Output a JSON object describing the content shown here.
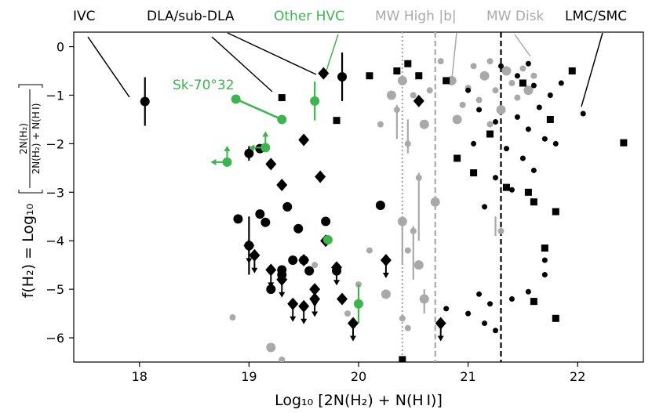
{
  "chart_data": {
    "type": "scatter",
    "title": "",
    "xlabel": "Log₁₀ [2N(H₂) + N(H I)]",
    "ylabel": "f(H₂) = Log₁₀ [2N(H₂) / (2N(H₂) + N(H I))]",
    "ylabel_parts": {
      "lhs": "f(H₂) = Log₁₀",
      "num": "2N(H₂)",
      "den": "2N(H₂) + N(H I)"
    },
    "xlim": [
      17.4,
      22.6
    ],
    "ylim": [
      -6.5,
      0.3
    ],
    "xticks": [
      18,
      19,
      20,
      21,
      22
    ],
    "yticks": [
      0,
      -1,
      -2,
      -3,
      -4,
      -5,
      -6
    ],
    "grid": false,
    "colors": {
      "black": "#000000",
      "gray": "#a9a9a9",
      "green": "#3cb450"
    },
    "vlines": [
      {
        "x": 20.4,
        "style": "dotted",
        "color": "#a9a9a9"
      },
      {
        "x": 20.7,
        "style": "dashed",
        "color": "#a9a9a9"
      },
      {
        "x": 21.3,
        "style": "dashed",
        "color": "#000000"
      }
    ],
    "category_labels": [
      {
        "text": "IVC",
        "color": "#000000"
      },
      {
        "text": "DLA/sub-DLA",
        "color": "#000000"
      },
      {
        "text": "Other HVC",
        "color": "#3cb450"
      },
      {
        "text": "MW High |b|",
        "color": "#a9a9a9"
      },
      {
        "text": "MW Disk",
        "color": "#a9a9a9"
      },
      {
        "text": "LMC/SMC",
        "color": "#000000"
      }
    ],
    "annotation": {
      "text": "Sk-70°32",
      "color": "#3cb450"
    },
    "series": [
      {
        "name": "IVC",
        "marker": "circle",
        "color": "#000000",
        "points": [
          {
            "x": 18.05,
            "y": -1.13,
            "err": 0.5
          },
          {
            "x": 19.0,
            "y": -2.2,
            "err": 0.15
          },
          {
            "x": 19.1,
            "y": -2.1
          },
          {
            "x": 19.35,
            "y": -3.3
          },
          {
            "x": 18.9,
            "y": -3.55
          },
          {
            "x": 19.1,
            "y": -3.45
          },
          {
            "x": 19.15,
            "y": -3.62
          },
          {
            "x": 19.45,
            "y": -3.75
          },
          {
            "x": 19.7,
            "y": -3.6
          },
          {
            "x": 19.0,
            "y": -4.1,
            "err": 0.6
          },
          {
            "x": 19.3,
            "y": -4.6
          },
          {
            "x": 19.4,
            "y": -4.4
          },
          {
            "x": 19.3,
            "y": -4.7
          },
          {
            "x": 19.5,
            "y": -4.4
          },
          {
            "x": 19.55,
            "y": -4.62
          },
          {
            "x": 19.8,
            "y": -4.62
          },
          {
            "x": 19.2,
            "y": -5.0
          },
          {
            "x": 19.85,
            "y": -0.62,
            "err": 0.5
          },
          {
            "x": 20.2,
            "y": -3.27
          }
        ]
      },
      {
        "name": "DLA/sub-DLA",
        "marker": "diamond",
        "color": "#000000",
        "points": [
          {
            "x": 19.2,
            "y": -2.42
          },
          {
            "x": 19.3,
            "y": -2.85
          },
          {
            "x": 19.65,
            "y": -2.68
          },
          {
            "x": 19.5,
            "y": -1.92
          },
          {
            "x": 19.68,
            "y": -0.55
          },
          {
            "x": 19.0,
            "y": -4.1,
            "ul": true
          },
          {
            "x": 19.05,
            "y": -4.3,
            "ul": true
          },
          {
            "x": 19.2,
            "y": -4.6,
            "ul": true
          },
          {
            "x": 19.3,
            "y": -4.8,
            "ul": true
          },
          {
            "x": 19.5,
            "y": -4.4
          },
          {
            "x": 19.6,
            "y": -5.0,
            "ul": true
          },
          {
            "x": 19.4,
            "y": -5.3,
            "ul": true
          },
          {
            "x": 19.5,
            "y": -5.35,
            "ul": true
          },
          {
            "x": 19.6,
            "y": -5.2,
            "ul": true
          },
          {
            "x": 19.7,
            "y": -4.0
          },
          {
            "x": 19.8,
            "y": -4.55,
            "ul": true
          },
          {
            "x": 19.85,
            "y": -5.2
          },
          {
            "x": 19.95,
            "y": -5.7,
            "ul": true
          },
          {
            "x": 20.25,
            "y": -4.4,
            "ul": true
          },
          {
            "x": 20.55,
            "y": -1.12
          },
          {
            "x": 20.75,
            "y": -5.7,
            "ul": true
          }
        ]
      },
      {
        "name": "LMC/SMC",
        "marker": "square",
        "color": "#000000",
        "points": [
          {
            "x": 19.3,
            "y": -1.05
          },
          {
            "x": 19.8,
            "y": -1.52
          },
          {
            "x": 20.1,
            "y": -0.6
          },
          {
            "x": 20.35,
            "y": -0.5
          },
          {
            "x": 20.45,
            "y": -0.35
          },
          {
            "x": 20.55,
            "y": -0.6
          },
          {
            "x": 20.8,
            "y": -0.7
          },
          {
            "x": 20.9,
            "y": -2.3
          },
          {
            "x": 21.05,
            "y": -2.6
          },
          {
            "x": 21.2,
            "y": -1.8
          },
          {
            "x": 21.35,
            "y": -2.9
          },
          {
            "x": 21.55,
            "y": -3.0
          },
          {
            "x": 21.6,
            "y": -3.2
          },
          {
            "x": 21.8,
            "y": -3.4
          },
          {
            "x": 21.7,
            "y": -4.15
          },
          {
            "x": 21.6,
            "y": -5.25
          },
          {
            "x": 21.8,
            "y": -5.6
          },
          {
            "x": 22.42,
            "y": -1.98
          },
          {
            "x": 21.95,
            "y": -0.5
          },
          {
            "x": 20.4,
            "y": -6.45
          },
          {
            "x": 21.75,
            "y": -1.5
          },
          {
            "x": 21.5,
            "y": -0.75
          }
        ]
      },
      {
        "name": "LMC/SMC small",
        "marker": "smallcircle",
        "color": "#000000",
        "points": [
          {
            "x": 21.3,
            "y": -0.4
          },
          {
            "x": 21.45,
            "y": -0.6
          },
          {
            "x": 21.6,
            "y": -0.8
          },
          {
            "x": 21.75,
            "y": -1.0
          },
          {
            "x": 21.65,
            "y": -1.25
          },
          {
            "x": 21.45,
            "y": -1.45
          },
          {
            "x": 21.55,
            "y": -1.7
          },
          {
            "x": 21.7,
            "y": -1.9
          },
          {
            "x": 21.35,
            "y": -2.1
          },
          {
            "x": 21.5,
            "y": -2.3
          },
          {
            "x": 21.6,
            "y": -2.55
          },
          {
            "x": 21.25,
            "y": -2.7
          },
          {
            "x": 21.4,
            "y": -2.95
          },
          {
            "x": 21.15,
            "y": -3.3
          },
          {
            "x": 21.8,
            "y": -2.0
          },
          {
            "x": 22.05,
            "y": -1.38
          },
          {
            "x": 21.0,
            "y": -0.9
          },
          {
            "x": 21.1,
            "y": -1.3
          },
          {
            "x": 21.05,
            "y": -2.0
          },
          {
            "x": 21.25,
            "y": -1.55
          },
          {
            "x": 21.7,
            "y": -4.4
          },
          {
            "x": 21.7,
            "y": -4.7
          },
          {
            "x": 21.1,
            "y": -5.1
          },
          {
            "x": 21.2,
            "y": -5.3
          },
          {
            "x": 21.0,
            "y": -5.5
          },
          {
            "x": 21.25,
            "y": -5.85
          },
          {
            "x": 21.4,
            "y": -5.2
          },
          {
            "x": 21.55,
            "y": -5.05
          },
          {
            "x": 21.15,
            "y": -5.7
          },
          {
            "x": 20.8,
            "y": -5.4
          },
          {
            "x": 21.85,
            "y": -0.75
          },
          {
            "x": 21.55,
            "y": -0.35
          }
        ]
      },
      {
        "name": "MW High |b| / MW Disk",
        "marker": "gray",
        "color": "#a9a9a9",
        "points": [
          {
            "x": 20.4,
            "y": -0.7
          },
          {
            "x": 20.5,
            "y": -1.0
          },
          {
            "x": 20.35,
            "y": -1.3
          },
          {
            "x": 20.6,
            "y": -1.6
          },
          {
            "x": 20.45,
            "y": -2.0
          },
          {
            "x": 20.55,
            "y": -2.7
          },
          {
            "x": 20.4,
            "y": -3.6
          },
          {
            "x": 20.5,
            "y": -3.8
          },
          {
            "x": 20.45,
            "y": -4.2
          },
          {
            "x": 20.55,
            "y": -4.5
          },
          {
            "x": 20.4,
            "y": -5.6
          },
          {
            "x": 20.45,
            "y": -5.8
          },
          {
            "x": 20.6,
            "y": -5.2
          },
          {
            "x": 20.65,
            "y": -0.9
          },
          {
            "x": 20.75,
            "y": -0.3
          },
          {
            "x": 20.85,
            "y": -0.7
          },
          {
            "x": 20.95,
            "y": -1.2
          },
          {
            "x": 21.05,
            "y": -0.4
          },
          {
            "x": 21.15,
            "y": -0.6
          },
          {
            "x": 21.2,
            "y": -0.3
          },
          {
            "x": 21.25,
            "y": -0.9
          },
          {
            "x": 21.35,
            "y": -0.5
          },
          {
            "x": 21.4,
            "y": -0.75
          },
          {
            "x": 21.45,
            "y": -1.05
          },
          {
            "x": 21.3,
            "y": -1.3
          },
          {
            "x": 21.1,
            "y": -1.1
          },
          {
            "x": 21.5,
            "y": -0.45
          },
          {
            "x": 21.55,
            "y": -0.9
          },
          {
            "x": 21.6,
            "y": -0.6
          },
          {
            "x": 21.0,
            "y": -0.85
          },
          {
            "x": 20.9,
            "y": -1.5
          },
          {
            "x": 21.2,
            "y": -1.6
          },
          {
            "x": 20.1,
            "y": -4.2
          },
          {
            "x": 20.25,
            "y": -5.1
          },
          {
            "x": 19.6,
            "y": -4.5
          },
          {
            "x": 18.85,
            "y": -5.58
          },
          {
            "x": 19.2,
            "y": -6.2
          },
          {
            "x": 19.3,
            "y": -6.45
          },
          {
            "x": 21.3,
            "y": -3.8
          },
          {
            "x": 20.3,
            "y": -1.0
          },
          {
            "x": 20.2,
            "y": -1.6
          },
          {
            "x": 19.9,
            "y": -5.5
          },
          {
            "x": 20.7,
            "y": -3.2
          },
          {
            "x": 20.0,
            "y": -4.9
          }
        ]
      },
      {
        "name": "Other HVC",
        "marker": "circle",
        "color": "#3cb450",
        "points": [
          {
            "x": 18.88,
            "y": -1.08
          },
          {
            "x": 19.3,
            "y": -1.5
          },
          {
            "x": 19.6,
            "y": -1.12,
            "err": 0.4
          },
          {
            "x": 18.8,
            "y": -2.38,
            "ll": true
          },
          {
            "x": 19.15,
            "y": -2.08,
            "ll": true
          },
          {
            "x": 19.72,
            "y": -3.98
          },
          {
            "x": 20.0,
            "y": -5.3,
            "err": 0.4
          }
        ]
      }
    ]
  }
}
